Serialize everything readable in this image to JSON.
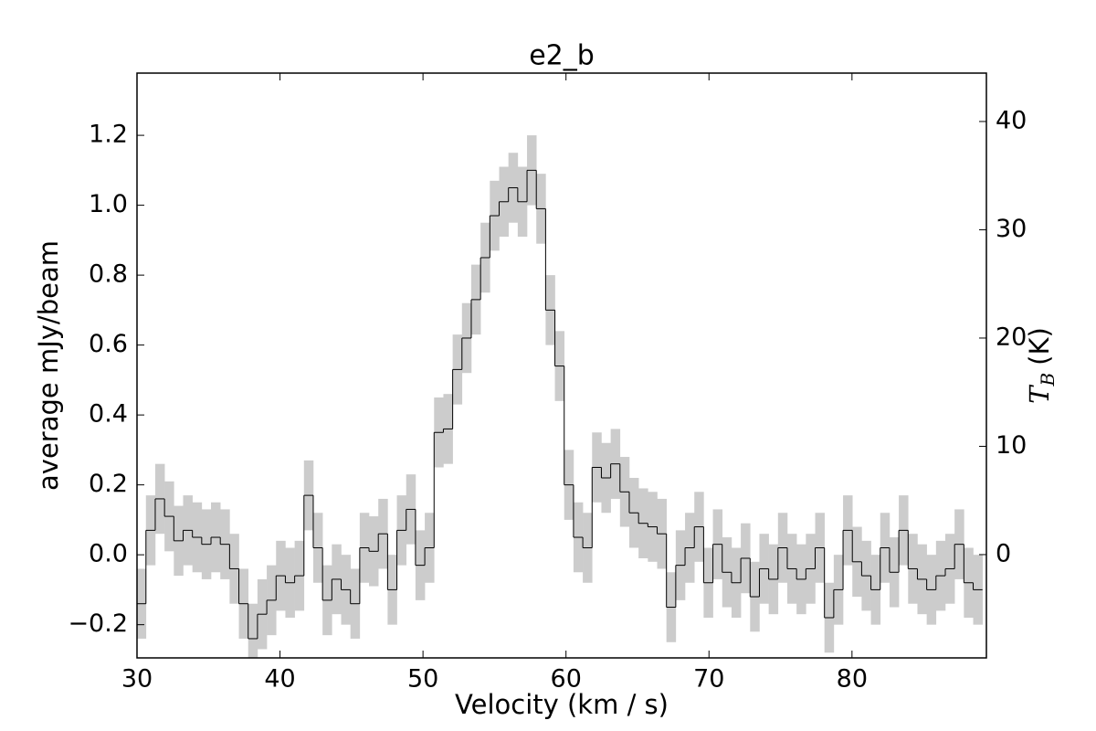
{
  "chart_data": {
    "type": "step",
    "title": "e2_b",
    "xlabel": "Velocity (km / s)",
    "ylabel": "average mJy/beam",
    "y2label": {
      "symbol": "T",
      "subscript": "B",
      "unit": "(K)"
    },
    "x": [
      30.3,
      30.95,
      31.6,
      32.25,
      32.9,
      33.55,
      34.2,
      34.85,
      35.5,
      36.15,
      36.8,
      37.45,
      38.1,
      38.75,
      39.4,
      40.05,
      40.7,
      41.35,
      42.0,
      42.65,
      43.3,
      43.95,
      44.6,
      45.25,
      45.9,
      46.55,
      47.2,
      47.85,
      48.5,
      49.15,
      49.8,
      50.45,
      51.1,
      51.75,
      52.4,
      53.05,
      53.7,
      54.35,
      55.0,
      55.65,
      56.3,
      56.95,
      57.6,
      58.25,
      58.9,
      59.55,
      60.2,
      60.85,
      61.5,
      62.15,
      62.8,
      63.45,
      64.1,
      64.75,
      65.4,
      66.05,
      66.7,
      67.35,
      68.0,
      68.65,
      69.3,
      69.95,
      70.6,
      71.25,
      71.9,
      72.55,
      73.2,
      73.85,
      74.5,
      75.15,
      75.8,
      76.45,
      77.1,
      77.75,
      78.4,
      79.05,
      79.7,
      80.35,
      81.0,
      81.65,
      82.3,
      82.95,
      83.6,
      84.25,
      84.9,
      85.55,
      86.2,
      86.85,
      87.5,
      88.15,
      88.8
    ],
    "values": [
      -0.14,
      0.07,
      0.16,
      0.11,
      0.04,
      0.07,
      0.05,
      0.03,
      0.05,
      0.03,
      -0.04,
      -0.14,
      -0.24,
      -0.17,
      -0.13,
      -0.06,
      -0.08,
      -0.06,
      0.17,
      0.02,
      -0.13,
      -0.07,
      -0.1,
      -0.14,
      0.02,
      0.01,
      0.06,
      -0.1,
      0.07,
      0.13,
      -0.03,
      0.02,
      0.35,
      0.36,
      0.53,
      0.62,
      0.73,
      0.85,
      0.97,
      1.01,
      1.05,
      1.01,
      1.1,
      0.99,
      0.7,
      0.54,
      0.2,
      0.05,
      0.02,
      0.25,
      0.22,
      0.26,
      0.18,
      0.12,
      0.09,
      0.08,
      0.06,
      -0.15,
      -0.03,
      0.02,
      0.08,
      -0.08,
      0.03,
      -0.05,
      -0.08,
      -0.01,
      -0.12,
      -0.04,
      -0.07,
      0.02,
      -0.04,
      -0.07,
      -0.04,
      0.02,
      -0.18,
      -0.1,
      0.07,
      -0.02,
      -0.06,
      -0.1,
      0.02,
      -0.05,
      0.07,
      -0.04,
      -0.07,
      -0.1,
      -0.06,
      -0.04,
      0.03,
      -0.08,
      -0.1
    ],
    "error": 0.1,
    "color": "#000000",
    "band_color": "#cccccc",
    "xlim": [
      30,
      89.4
    ],
    "ylim": [
      -0.295,
      1.378
    ],
    "y2lim": [
      -9.54,
      44.47
    ],
    "xticks": [
      30,
      40,
      50,
      60,
      70,
      80
    ],
    "yticks": [
      {
        "value": -0.2,
        "label": "−0.2"
      },
      {
        "value": 0,
        "label": "0.0"
      },
      0.2,
      0.4,
      0.6,
      0.8,
      {
        "value": 1,
        "label": "1.0"
      },
      1.2
    ],
    "y2ticks": [
      0,
      10,
      20,
      30,
      40
    ]
  }
}
